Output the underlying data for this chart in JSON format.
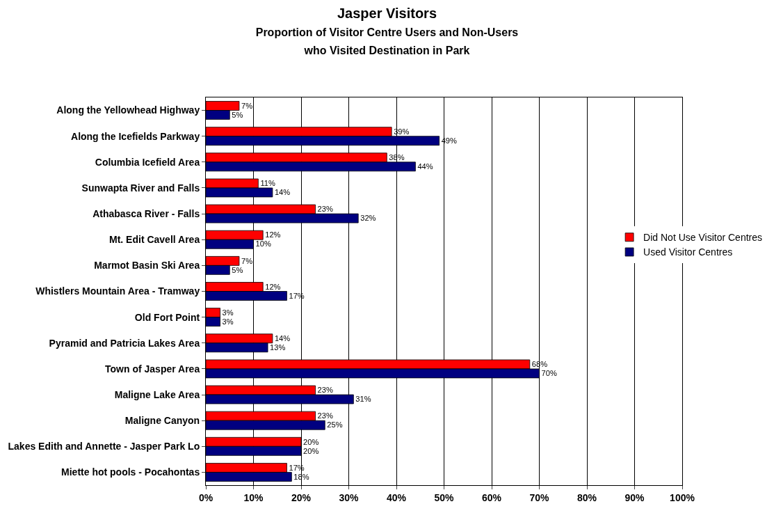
{
  "chart_data": {
    "type": "bar",
    "orientation": "horizontal",
    "title": "Jasper Visitors",
    "subtitle": "Proportion of Visitor Centre Users and Non-Users\nwho Visited Destination in Park",
    "categories": [
      "Along the Yellowhead Highway",
      "Along the Icefields Parkway",
      "Columbia Icefield Area",
      "Sunwapta River and Falls",
      "Athabasca River - Falls",
      "Mt. Edit Cavell Area",
      "Marmot Basin Ski Area",
      "Whistlers Mountain Area - Tramway",
      "Old Fort Point",
      "Pyramid and Patricia Lakes Area",
      "Town of Jasper Area",
      "Maligne Lake Area",
      "Maligne Canyon",
      "Lakes Edith and Annette - Jasper Park Lo",
      "Miette hot pools - Pocahontas"
    ],
    "series": [
      {
        "name": "Did Not Use Visitor Centres",
        "color": "#ff0000",
        "values": [
          7,
          39,
          38,
          11,
          23,
          12,
          7,
          12,
          3,
          14,
          68,
          23,
          23,
          20,
          17
        ],
        "value_labels": [
          "7%",
          "39%",
          "38%",
          "11%",
          "23%",
          "12%",
          "7%",
          "12%",
          "3%",
          "14%",
          "68%",
          "23%",
          "23%",
          "20%",
          "17%"
        ]
      },
      {
        "name": "Used Visitor Centres",
        "color": "#000080",
        "values": [
          5,
          49,
          44,
          14,
          32,
          10,
          5,
          17,
          3,
          13,
          70,
          31,
          25,
          20,
          18
        ],
        "value_labels": [
          "5%",
          "49%",
          "44%",
          "14%",
          "32%",
          "10%",
          "5%",
          "17%",
          "3%",
          "13%",
          "70%",
          "31%",
          "25%",
          "20%",
          "18%"
        ]
      }
    ],
    "xlim": [
      0,
      100
    ],
    "xticks": [
      {
        "value": 0,
        "label": "0%"
      },
      {
        "value": 10,
        "label": "10%"
      },
      {
        "value": 20,
        "label": "20%"
      },
      {
        "value": 30,
        "label": "30%"
      },
      {
        "value": 40,
        "label": "40%"
      },
      {
        "value": 50,
        "label": "50%"
      },
      {
        "value": 60,
        "label": "60%"
      },
      {
        "value": 70,
        "label": "70%"
      },
      {
        "value": 80,
        "label": "80%"
      },
      {
        "value": 90,
        "label": "90%"
      },
      {
        "value": 100,
        "label": "100%"
      }
    ],
    "grid": "x",
    "legend": "right"
  }
}
